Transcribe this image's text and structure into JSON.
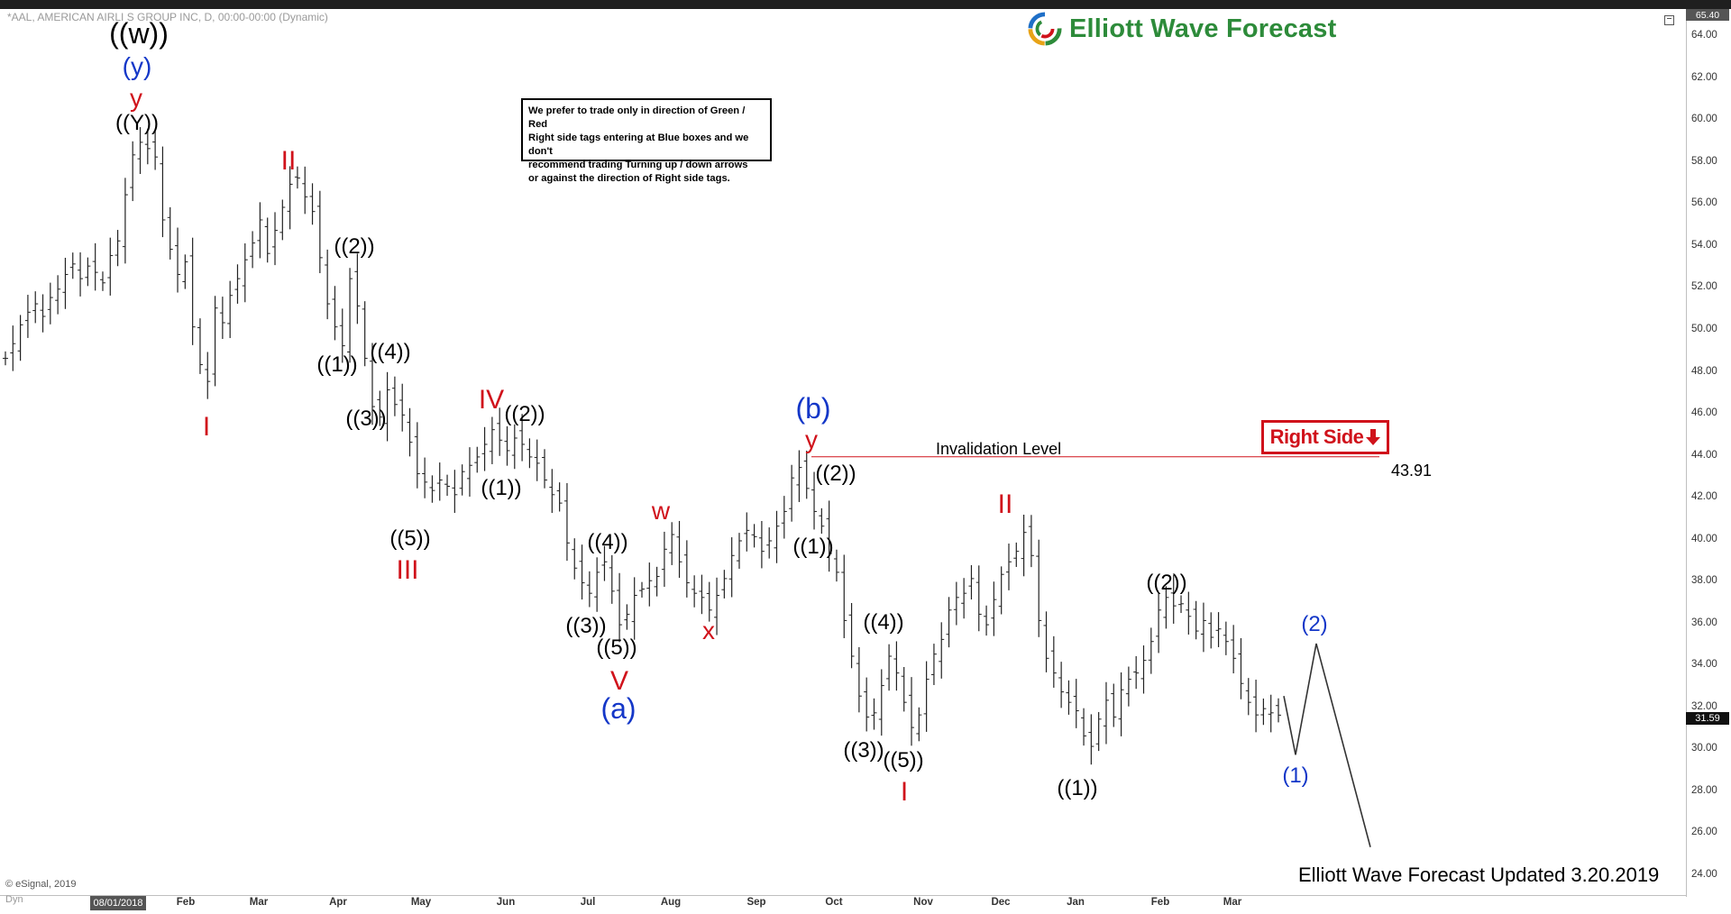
{
  "header": {
    "symbol_line": "*AAL, AMERICAN AIRLI S GROUP INC, D, 00:00-00:00 (Dynamic)",
    "brand": "Elliott Wave Forecast"
  },
  "disclaimer": {
    "lines": [
      "We prefer to trade only in direction of Green / Red",
      "Right side tags entering at Blue boxes and we don't",
      "recommend trading Turning up / down arrows",
      "or against the direction of Right side tags."
    ]
  },
  "right_side": {
    "label": "Right Side",
    "arrow": "down-arrow-icon",
    "color": "#d0121b"
  },
  "invalidation": {
    "label": "Invalidation Level",
    "value": "43.91"
  },
  "footer": {
    "updated": "Elliott Wave Forecast Updated 3.20.2019",
    "copyright": "© eSignal, 2019",
    "dyn": "Dyn"
  },
  "axis": {
    "current_price": "31.59",
    "top_price": "65.40",
    "start_date": "08/01/2018"
  },
  "colors": {
    "black": "#000000",
    "red": "#d0121b",
    "blue": "#1437c8",
    "brand_green": "#2d8b3a"
  },
  "chart_data": {
    "type": "bar",
    "subtype": "ohlc-price-chart",
    "ylim": [
      23,
      65.4
    ],
    "y_ticks": [
      24,
      26,
      28,
      30,
      32,
      34,
      36,
      38,
      40,
      42,
      44,
      46,
      48,
      50,
      52,
      54,
      56,
      58,
      60,
      62,
      64
    ],
    "x_ticks": [
      "Feb",
      "Mar",
      "Apr",
      "May",
      "Jun",
      "Jul",
      "Aug",
      "Sep",
      "Oct",
      "Nov",
      "Dec",
      "Jan",
      "Feb",
      "Mar"
    ],
    "invalidation_level": 43.91,
    "close": [
      48.6,
      49.3,
      50.2,
      50.8,
      51.2,
      50.6,
      51.5,
      51.9,
      52.6,
      53.1,
      52.4,
      53.0,
      52.7,
      52.2,
      53.5,
      54.2,
      56.4,
      58.3,
      58.9,
      58.6,
      58.2,
      55.2,
      53.8,
      52.6,
      53.2,
      50.1,
      48.3,
      47.5,
      51.0,
      50.3,
      51.6,
      52.4,
      53.3,
      54.1,
      55.2,
      53.6,
      54.7,
      55.8,
      56.9,
      57.2,
      56.3,
      55.6,
      53.4,
      51.2,
      50.1,
      49.2,
      52.4,
      51.1,
      48.6,
      46.3,
      45.8,
      47.1,
      46.4,
      45.9,
      44.6,
      43.1,
      42.7,
      42.3,
      42.8,
      42.5,
      42.1,
      43.2,
      43.5,
      43.9,
      44.5,
      45.2,
      44.7,
      44.2,
      44.8,
      44.5,
      43.9,
      43.6,
      42.8,
      42.1,
      41.7,
      39.8,
      38.6,
      37.9,
      37.4,
      38.4,
      38.9,
      37.5,
      35.9,
      36.4,
      37.3,
      37.6,
      38.0,
      38.2,
      39.5,
      40.2,
      38.9,
      37.9,
      37.4,
      37.2,
      36.6,
      37.3,
      38.1,
      39.2,
      39.9,
      40.4,
      40.1,
      39.4,
      39.9,
      40.6,
      41.3,
      42.9,
      43.4,
      42.4,
      41.3,
      40.6,
      39.3,
      38.4,
      36.1,
      34.4,
      32.5,
      31.5,
      31.7,
      33.0,
      34.4,
      33.6,
      32.2,
      31.0,
      31.6,
      33.3,
      34.5,
      35.2,
      36.6,
      37.2,
      37.4,
      38.1,
      36.4,
      35.9,
      37.1,
      38.3,
      38.9,
      39.4,
      40.3,
      39.2,
      36.1,
      34.3,
      33.6,
      32.7,
      32.2,
      31.8,
      30.6,
      30.1,
      31.4,
      32.3,
      31.5,
      32.8,
      33.3,
      33.6,
      34.2,
      35.1,
      36.6,
      37.2,
      36.8,
      36.9,
      36.3,
      35.6,
      36.1,
      35.3,
      35.7,
      35.1,
      34.3,
      33.1,
      32.2,
      31.6,
      31.9,
      31.7,
      31.59
    ],
    "wave_labels": [
      {
        "text": "((w))",
        "price": 64.1,
        "color": "black"
      },
      {
        "text": "(y)",
        "price": 62.5,
        "color": "blue"
      },
      {
        "text": "y",
        "price": 61.0,
        "color": "red"
      },
      {
        "text": "((Y))",
        "price": 59.8,
        "color": "black"
      },
      {
        "text": "I",
        "price": 45.3,
        "color": "red"
      },
      {
        "text": "II",
        "price": 58.0,
        "color": "red"
      },
      {
        "text": "((1))",
        "price": 48.3,
        "color": "black"
      },
      {
        "text": "((2))",
        "price": 53.9,
        "color": "black"
      },
      {
        "text": "((3))",
        "price": 45.7,
        "color": "black"
      },
      {
        "text": "((4))",
        "price": 48.9,
        "color": "black"
      },
      {
        "text": "((5))",
        "price": 40.0,
        "color": "black"
      },
      {
        "text": "III",
        "price": 38.5,
        "color": "red"
      },
      {
        "text": "IV",
        "price": 46.6,
        "color": "red"
      },
      {
        "text": "((2))",
        "price": 45.9,
        "color": "black"
      },
      {
        "text": "((1))",
        "price": 42.4,
        "color": "black"
      },
      {
        "text": "((4))",
        "price": 39.8,
        "color": "black"
      },
      {
        "text": "((3))",
        "price": 35.8,
        "color": "black"
      },
      {
        "text": "((5))",
        "price": 34.8,
        "color": "black"
      },
      {
        "text": "V",
        "price": 33.2,
        "color": "red"
      },
      {
        "text": "(a)",
        "price": 31.9,
        "color": "blue"
      },
      {
        "text": "w",
        "price": 41.3,
        "color": "red"
      },
      {
        "text": "x",
        "price": 35.6,
        "color": "red"
      },
      {
        "text": "(b)",
        "price": 46.2,
        "color": "blue"
      },
      {
        "text": "y",
        "price": 44.7,
        "color": "red"
      },
      {
        "text": "((2))",
        "price": 43.1,
        "color": "black"
      },
      {
        "text": "((1))",
        "price": 39.6,
        "color": "black"
      },
      {
        "text": "((4))",
        "price": 36.0,
        "color": "black"
      },
      {
        "text": "((3))",
        "price": 29.9,
        "color": "black"
      },
      {
        "text": "((5))",
        "price": 29.4,
        "color": "black"
      },
      {
        "text": "I",
        "price": 27.9,
        "color": "red"
      },
      {
        "text": "II",
        "price": 41.6,
        "color": "red"
      },
      {
        "text": "((1))",
        "price": 28.1,
        "color": "black"
      },
      {
        "text": "((2))",
        "price": 37.9,
        "color": "black"
      },
      {
        "text": "(2)",
        "price": 35.9,
        "color": "blue"
      },
      {
        "text": "(1)",
        "price": 28.7,
        "color": "blue"
      }
    ],
    "projection": [
      {
        "date": "2019-03-20",
        "price": 32.5
      },
      {
        "date": "2019-03-26",
        "price": 29.7
      },
      {
        "date": "2019-04-03",
        "price": 35.0
      },
      {
        "date": "2019-04-17",
        "price": 25.3
      }
    ]
  }
}
